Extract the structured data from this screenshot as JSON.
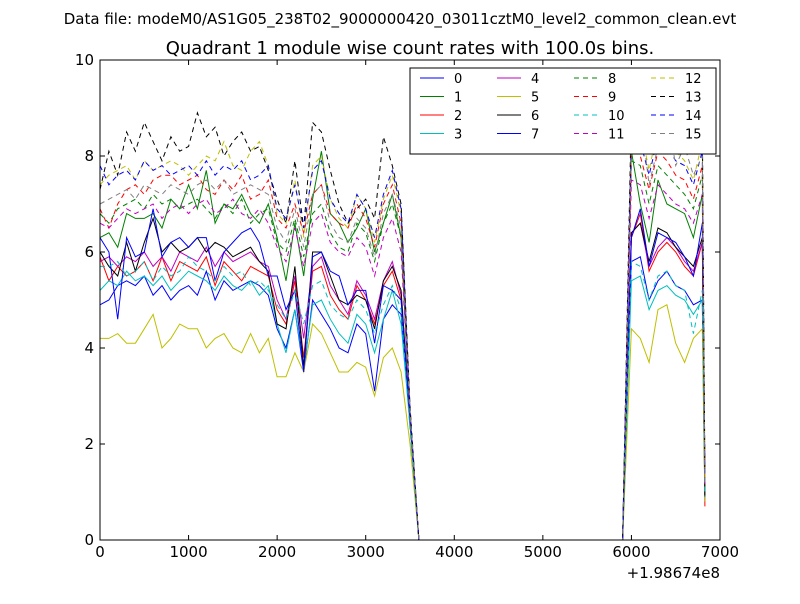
{
  "suptitle": "Data file: modeM0/AS1G05_238T02_9000000420_03011cztM0_level2_common_clean.evt",
  "chart_data": {
    "type": "line",
    "title": "Quadrant 1 module wise count rates with 100.0s bins.",
    "xlabel": "",
    "ylabel": "",
    "xlim": [
      0,
      7000
    ],
    "ylim": [
      0,
      10
    ],
    "x_offset_label": "+1.98674e8",
    "xticks": [
      "0",
      "1000",
      "2000",
      "3000",
      "4000",
      "5000",
      "6000",
      "7000"
    ],
    "yticks": [
      "0",
      "2",
      "4",
      "6",
      "8",
      "10"
    ],
    "grid": false,
    "legend_position": "top-right",
    "x": [
      0,
      100,
      200,
      300,
      400,
      500,
      600,
      700,
      800,
      900,
      1000,
      1100,
      1200,
      1300,
      1400,
      1500,
      1600,
      1700,
      1800,
      1900,
      2000,
      2100,
      2200,
      2300,
      2400,
      2500,
      2600,
      2700,
      2800,
      2900,
      3000,
      3100,
      3200,
      3300,
      3400,
      3500,
      3600,
      3700,
      3800,
      3900,
      4000,
      4100,
      4200,
      4300,
      4400,
      4500,
      4600,
      4700,
      4800,
      4900,
      5000,
      5100,
      5200,
      5300,
      5400,
      5500,
      5600,
      5700,
      5800,
      5900,
      6000,
      6100,
      6200,
      6300,
      6400,
      6500,
      6600,
      6700,
      6800,
      6830
    ],
    "series": [
      {
        "name": "0",
        "color": "#0000ff",
        "dash": "solid",
        "values": [
          4.9,
          5.0,
          5.3,
          5.4,
          5.3,
          5.5,
          5.1,
          5.3,
          5.0,
          5.2,
          5.3,
          5.1,
          5.6,
          5.0,
          5.4,
          5.2,
          5.3,
          5.4,
          5.3,
          5.1,
          4.4,
          4.0,
          4.8,
          3.5,
          5.0,
          4.7,
          4.4,
          4.0,
          3.9,
          4.5,
          4.3,
          3.1,
          4.6,
          4.9,
          4.7,
          2.5,
          0,
          0,
          0,
          0,
          0,
          0,
          0,
          0,
          0,
          0,
          0,
          0,
          0,
          0,
          0,
          0,
          0,
          0,
          0,
          0,
          0,
          0,
          0,
          0,
          5.8,
          5.9,
          5.0,
          5.4,
          5.6,
          5.3,
          5.2,
          4.9,
          5.0,
          0.8
        ]
      },
      {
        "name": "1",
        "color": "#008000",
        "dash": "solid",
        "values": [
          6.3,
          6.4,
          6.1,
          6.8,
          6.7,
          6.7,
          6.8,
          6.5,
          7.1,
          6.9,
          7.4,
          6.9,
          7.7,
          6.6,
          7.0,
          6.9,
          7.2,
          6.8,
          6.6,
          7.0,
          6.3,
          5.4,
          6.6,
          5.5,
          7.1,
          8.1,
          6.8,
          6.6,
          6.2,
          6.5,
          6.9,
          6.0,
          6.6,
          7.2,
          6.3,
          2.5,
          0,
          0,
          0,
          0,
          0,
          0,
          0,
          0,
          0,
          0,
          0,
          0,
          0,
          0,
          0,
          0,
          0,
          0,
          0,
          0,
          0,
          0,
          0,
          0,
          8.1,
          7.0,
          6.2,
          7.5,
          7.0,
          6.9,
          6.8,
          6.3,
          7.2,
          1.0
        ]
      },
      {
        "name": "2",
        "color": "#ff0000",
        "dash": "solid",
        "values": [
          5.9,
          5.4,
          5.7,
          5.5,
          5.6,
          5.8,
          5.4,
          5.9,
          5.4,
          5.8,
          5.7,
          5.6,
          5.9,
          5.3,
          5.8,
          5.6,
          5.4,
          5.7,
          5.6,
          5.5,
          4.8,
          4.5,
          5.4,
          3.8,
          5.6,
          5.7,
          5.1,
          4.8,
          4.6,
          5.3,
          5.0,
          4.5,
          5.3,
          5.6,
          5.0,
          2.5,
          0,
          0,
          0,
          0,
          0,
          0,
          0,
          0,
          0,
          0,
          0,
          0,
          0,
          0,
          0,
          0,
          0,
          0,
          0,
          0,
          0,
          0,
          0,
          0,
          6.3,
          6.8,
          5.6,
          6.0,
          6.2,
          6.0,
          5.7,
          5.5,
          6.2,
          0.7
        ]
      },
      {
        "name": "3",
        "color": "#00bfbf",
        "dash": "solid",
        "values": [
          5.2,
          5.4,
          5.3,
          5.6,
          5.4,
          5.5,
          5.3,
          5.5,
          5.2,
          5.4,
          5.6,
          5.5,
          5.4,
          5.2,
          5.5,
          5.3,
          5.2,
          5.4,
          5.1,
          5.3,
          4.5,
          3.9,
          4.8,
          3.6,
          4.9,
          5.0,
          4.6,
          4.3,
          4.1,
          4.7,
          4.5,
          3.9,
          4.6,
          5.2,
          4.5,
          2.4,
          0,
          0,
          0,
          0,
          0,
          0,
          0,
          0,
          0,
          0,
          0,
          0,
          0,
          0,
          0,
          0,
          0,
          0,
          0,
          0,
          0,
          0,
          0,
          0,
          5.4,
          5.5,
          4.8,
          5.2,
          5.3,
          5.1,
          5.0,
          4.7,
          5.0,
          0.9
        ]
      },
      {
        "name": "4",
        "color": "#bf00bf",
        "dash": "solid",
        "values": [
          5.8,
          5.9,
          5.7,
          5.9,
          5.8,
          6.0,
          5.7,
          5.9,
          5.6,
          6.0,
          5.9,
          5.8,
          6.1,
          5.7,
          6.0,
          5.8,
          5.9,
          6.0,
          5.8,
          5.7,
          5.0,
          4.6,
          5.5,
          4.2,
          5.7,
          5.9,
          5.3,
          5.0,
          4.7,
          5.4,
          5.1,
          4.6,
          5.4,
          5.8,
          5.1,
          2.5,
          0,
          0,
          0,
          0,
          0,
          0,
          0,
          0,
          0,
          0,
          0,
          0,
          0,
          0,
          0,
          0,
          0,
          0,
          0,
          0,
          0,
          0,
          0,
          0,
          6.4,
          6.6,
          5.7,
          6.1,
          6.3,
          6.1,
          5.8,
          5.6,
          6.2,
          0.9
        ]
      },
      {
        "name": "5",
        "color": "#bfbf00",
        "dash": "solid",
        "values": [
          4.2,
          4.2,
          4.3,
          4.1,
          4.1,
          4.4,
          4.7,
          4.0,
          4.2,
          4.5,
          4.4,
          4.4,
          4.0,
          4.2,
          4.3,
          4.0,
          3.9,
          4.3,
          3.9,
          4.2,
          3.4,
          3.4,
          3.9,
          3.5,
          4.5,
          4.3,
          3.9,
          3.5,
          3.5,
          3.7,
          3.6,
          3.0,
          3.8,
          4.0,
          3.5,
          2.0,
          0,
          0,
          0,
          0,
          0,
          0,
          0,
          0,
          0,
          0,
          0,
          0,
          0,
          0,
          0,
          0,
          0,
          0,
          0,
          0,
          0,
          0,
          0,
          0,
          4.4,
          4.2,
          3.7,
          4.8,
          4.9,
          4.1,
          3.7,
          4.2,
          4.4,
          0.8
        ]
      },
      {
        "name": "6",
        "color": "#000000",
        "dash": "solid",
        "values": [
          6.0,
          5.7,
          5.5,
          6.2,
          5.6,
          6.2,
          6.7,
          6.0,
          6.2,
          6.0,
          6.1,
          6.3,
          6.0,
          6.2,
          6.1,
          5.9,
          6.0,
          6.1,
          5.8,
          5.6,
          4.5,
          4.4,
          5.7,
          3.6,
          6.0,
          6.0,
          5.5,
          5.0,
          4.9,
          5.1,
          5.0,
          4.4,
          5.4,
          5.7,
          5.2,
          2.5,
          0,
          0,
          0,
          0,
          0,
          0,
          0,
          0,
          0,
          0,
          0,
          0,
          0,
          0,
          0,
          0,
          0,
          0,
          0,
          0,
          0,
          0,
          0,
          0,
          6.4,
          6.6,
          5.8,
          6.5,
          6.4,
          6.1,
          5.9,
          5.7,
          6.3,
          0.9
        ]
      },
      {
        "name": "7",
        "color": "#0000ff",
        "dash": "solid",
        "values": [
          6.3,
          6.0,
          4.6,
          6.3,
          5.9,
          6.0,
          6.9,
          5.9,
          6.2,
          6.3,
          6.1,
          6.3,
          6.3,
          5.4,
          6.0,
          6.2,
          6.4,
          6.5,
          6.2,
          5.5,
          5.5,
          4.8,
          5.2,
          3.5,
          5.9,
          6.0,
          5.6,
          5.5,
          4.9,
          5.2,
          5.2,
          4.1,
          5.3,
          5.2,
          5.0,
          2.5,
          0,
          0,
          0,
          0,
          0,
          0,
          0,
          0,
          0,
          0,
          0,
          0,
          0,
          0,
          0,
          0,
          0,
          0,
          0,
          0,
          0,
          0,
          0,
          0,
          6.3,
          6.9,
          5.7,
          6.4,
          6.3,
          6.2,
          5.9,
          5.5,
          6.6,
          1.2
        ]
      },
      {
        "name": "8",
        "color": "#008000",
        "dash": "dashed",
        "values": [
          6.8,
          6.6,
          6.9,
          7.0,
          7.1,
          6.9,
          7.2,
          7.0,
          7.1,
          6.9,
          7.0,
          7.1,
          6.9,
          6.7,
          7.0,
          6.8,
          7.1,
          6.6,
          6.8,
          6.9,
          6.2,
          6.0,
          6.7,
          5.9,
          6.8,
          7.0,
          6.4,
          6.1,
          6.0,
          6.6,
          6.4,
          5.8,
          6.6,
          7.0,
          6.3,
          2.6,
          0,
          0,
          0,
          0,
          0,
          0,
          0,
          0,
          0,
          0,
          0,
          0,
          0,
          0,
          0,
          0,
          0,
          0,
          0,
          0,
          0,
          0,
          0,
          0,
          7.9,
          7.8,
          7.0,
          7.8,
          7.6,
          7.4,
          7.2,
          6.9,
          7.6,
          1.2
        ]
      },
      {
        "name": "9",
        "color": "#ff0000",
        "dash": "dashed",
        "values": [
          6.9,
          6.5,
          7.0,
          7.3,
          7.4,
          7.2,
          7.5,
          7.6,
          7.6,
          7.4,
          7.5,
          7.6,
          7.3,
          7.2,
          7.5,
          7.3,
          7.6,
          7.1,
          7.2,
          7.5,
          6.7,
          6.5,
          7.0,
          6.4,
          7.2,
          7.4,
          6.8,
          6.6,
          6.5,
          7.0,
          6.7,
          6.1,
          7.0,
          7.4,
          6.6,
          2.7,
          0,
          0,
          0,
          0,
          0,
          0,
          0,
          0,
          0,
          0,
          0,
          0,
          0,
          0,
          0,
          0,
          0,
          0,
          0,
          0,
          0,
          0,
          0,
          0,
          8.2,
          8.0,
          7.3,
          8.1,
          7.9,
          7.6,
          7.5,
          7.1,
          7.8,
          1.2
        ]
      },
      {
        "name": "10",
        "color": "#00bfbf",
        "dash": "dashed",
        "values": [
          5.7,
          5.7,
          5.8,
          5.5,
          5.6,
          5.8,
          5.4,
          5.7,
          5.5,
          5.6,
          5.9,
          5.7,
          5.6,
          5.4,
          5.7,
          5.5,
          5.6,
          5.3,
          5.4,
          5.2,
          4.9,
          4.6,
          5.2,
          4.5,
          5.3,
          5.4,
          4.9,
          4.7,
          4.6,
          5.0,
          4.8,
          4.3,
          4.9,
          5.3,
          4.8,
          2.3,
          0,
          0,
          0,
          0,
          0,
          0,
          0,
          0,
          0,
          0,
          0,
          0,
          0,
          0,
          0,
          0,
          0,
          0,
          0,
          0,
          0,
          0,
          0,
          0,
          5.8,
          5.7,
          5.0,
          5.5,
          5.6,
          5.3,
          5.2,
          4.3,
          5.2,
          0.9
        ]
      },
      {
        "name": "11",
        "color": "#bf00bf",
        "dash": "dashed",
        "values": [
          6.6,
          6.5,
          6.7,
          6.9,
          6.8,
          6.9,
          7.0,
          6.7,
          6.9,
          7.0,
          6.8,
          7.0,
          7.1,
          6.8,
          6.9,
          7.1,
          6.8,
          6.7,
          6.9,
          6.6,
          6.1,
          5.8,
          6.5,
          5.7,
          6.6,
          6.8,
          6.2,
          6.0,
          5.9,
          6.3,
          6.1,
          5.5,
          6.3,
          6.7,
          6.0,
          2.6,
          0,
          0,
          0,
          0,
          0,
          0,
          0,
          0,
          0,
          0,
          0,
          0,
          0,
          0,
          0,
          0,
          0,
          0,
          0,
          0,
          0,
          0,
          0,
          0,
          7.5,
          7.4,
          6.7,
          7.4,
          7.2,
          7.0,
          6.9,
          6.6,
          7.2,
          1.1
        ]
      },
      {
        "name": "12",
        "color": "#bfbf00",
        "dash": "dashed",
        "values": [
          7.4,
          7.6,
          7.7,
          7.8,
          7.5,
          7.9,
          7.7,
          7.8,
          7.9,
          7.8,
          7.6,
          7.8,
          8.0,
          7.9,
          8.3,
          7.8,
          7.7,
          8.1,
          8.3,
          7.8,
          6.8,
          6.6,
          7.5,
          6.3,
          7.8,
          8.0,
          7.1,
          6.7,
          6.5,
          7.2,
          6.9,
          6.2,
          7.1,
          7.6,
          6.8,
          2.7,
          0,
          0,
          0,
          0,
          0,
          0,
          0,
          0,
          0,
          0,
          0,
          0,
          0,
          0,
          0,
          0,
          0,
          0,
          0,
          0,
          0,
          0,
          0,
          0,
          8.7,
          8.6,
          7.7,
          8.6,
          8.4,
          8.1,
          7.9,
          7.5,
          8.3,
          1.3
        ]
      },
      {
        "name": "13",
        "color": "#000000",
        "dash": "dashed",
        "values": [
          7.3,
          8.1,
          7.6,
          8.5,
          8.1,
          8.7,
          8.3,
          7.9,
          8.4,
          8.1,
          8.2,
          8.9,
          8.4,
          8.6,
          8.0,
          8.3,
          8.5,
          8.1,
          8.2,
          7.7,
          7.1,
          6.6,
          7.9,
          6.5,
          8.7,
          8.5,
          7.7,
          7.0,
          6.6,
          6.9,
          7.1,
          6.7,
          8.4,
          7.8,
          7.0,
          2.8,
          0,
          0,
          0,
          0,
          0,
          0,
          0,
          0,
          0,
          0,
          0,
          0,
          0,
          0,
          0,
          0,
          0,
          0,
          0,
          0,
          0,
          0,
          0,
          0,
          9.0,
          9.4,
          8.4,
          9.0,
          8.8,
          8.5,
          9.2,
          8.6,
          8.8,
          1.4
        ]
      },
      {
        "name": "14",
        "color": "#0000ff",
        "dash": "dashed",
        "values": [
          7.8,
          7.4,
          7.6,
          7.7,
          7.5,
          7.9,
          7.7,
          7.8,
          7.6,
          7.7,
          7.8,
          7.6,
          7.9,
          7.6,
          7.8,
          7.7,
          7.9,
          7.5,
          7.6,
          7.8,
          6.9,
          6.7,
          7.4,
          6.5,
          7.7,
          7.9,
          7.1,
          6.8,
          6.6,
          7.2,
          6.9,
          6.3,
          7.2,
          7.7,
          6.9,
          2.7,
          0,
          0,
          0,
          0,
          0,
          0,
          0,
          0,
          0,
          0,
          0,
          0,
          0,
          0,
          0,
          0,
          0,
          0,
          0,
          0,
          0,
          0,
          0,
          0,
          8.5,
          8.3,
          7.6,
          8.4,
          8.2,
          7.9,
          7.8,
          7.4,
          8.1,
          1.3
        ]
      },
      {
        "name": "15",
        "color": "#808080",
        "dash": "dashed",
        "values": [
          7.0,
          7.1,
          7.2,
          7.3,
          7.1,
          7.4,
          7.3,
          7.2,
          7.4,
          7.3,
          7.2,
          7.4,
          7.5,
          7.3,
          7.5,
          7.2,
          7.3,
          7.4,
          7.3,
          7.2,
          6.5,
          6.2,
          6.9,
          6.1,
          7.2,
          7.4,
          6.6,
          6.3,
          6.2,
          6.7,
          6.5,
          5.9,
          6.8,
          7.2,
          6.5,
          2.7,
          0,
          0,
          0,
          0,
          0,
          0,
          0,
          0,
          0,
          0,
          0,
          0,
          0,
          0,
          0,
          0,
          0,
          0,
          0,
          0,
          0,
          0,
          0,
          0,
          8.3,
          8.9,
          7.4,
          8.2,
          8.9,
          7.8,
          8.2,
          7.6,
          8.0,
          1.2
        ]
      }
    ]
  }
}
